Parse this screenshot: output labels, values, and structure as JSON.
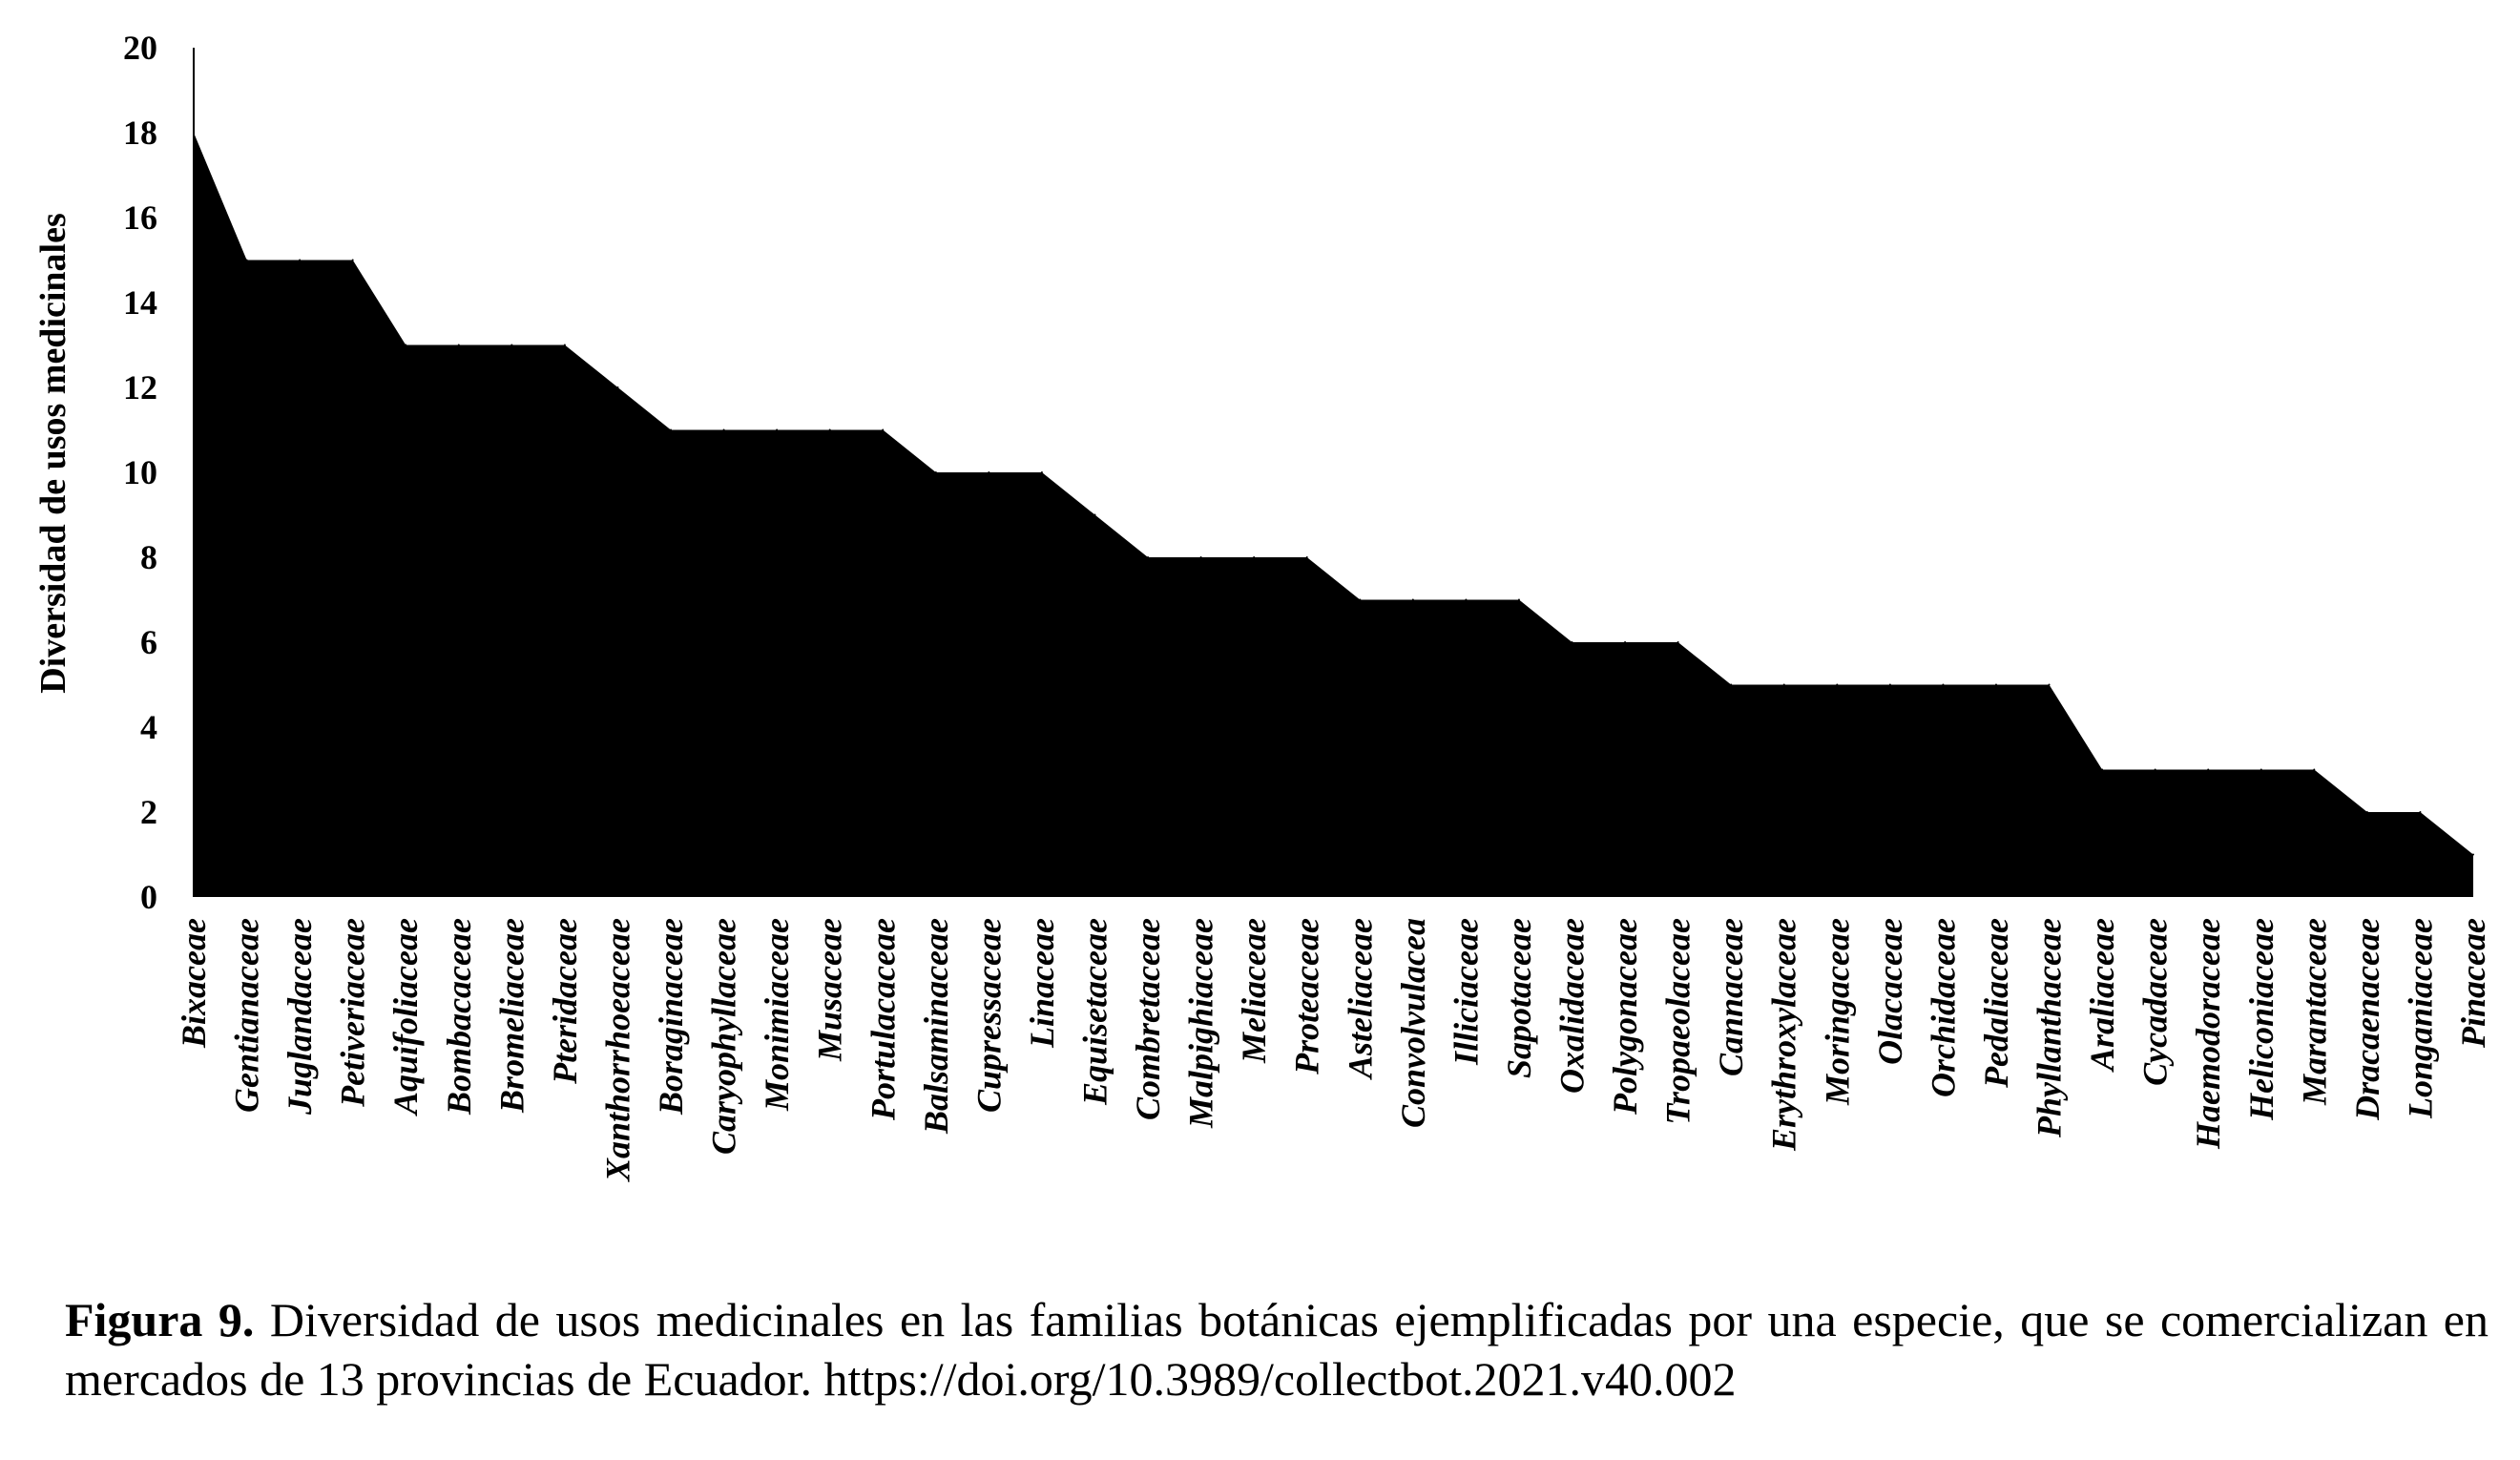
{
  "chart_data": {
    "type": "area",
    "ylabel": "Diversidad de usos medicinales",
    "xlabel": "",
    "ylim": [
      0,
      20
    ],
    "yticks": [
      "0",
      "2",
      "4",
      "6",
      "8",
      "10",
      "12",
      "14",
      "16",
      "18",
      "20"
    ],
    "categories": [
      "Bixaceae",
      "Gentianaceae",
      "Juglandaceae",
      "Petiveriaceae",
      "Aquifoliaceae",
      "Bombacaceae",
      "Bromeliaceae",
      "Pteridaceae",
      "Xanthorrhoeaceae",
      "Boraginaceae",
      "Caryophyllaceae",
      "Monimiaceae",
      "Musaceae",
      "Portulacaceae",
      "Balsaminaceae",
      "Cupressaceae",
      "Linaceae",
      "Equisetaceae",
      "Combretaceae",
      "Malpighiaceae",
      "Meliaceae",
      "Proteaceae",
      "Asteliaceae",
      "Convolvulacea",
      "Illiciaceae",
      "Sapotaceae",
      "Oxalidaceae",
      "Polygonaceae",
      "Tropaeolaceae",
      "Cannaceae",
      "Erythroxylaceae",
      "Moringaceae",
      "Olacaceae",
      "Orchidaceae",
      "Pedaliaceae",
      "Phyllanthaceae",
      "Araliaceae",
      "Cycadaceae",
      "Haemodoraceae",
      "Heliconiaceae",
      "Marantaceae",
      "Dracaenaceae",
      "Longaniaceae",
      "Pinaceae"
    ],
    "values": [
      18,
      15,
      15,
      15,
      13,
      13,
      13,
      13,
      12,
      11,
      11,
      11,
      11,
      11,
      10,
      10,
      10,
      9,
      8,
      8,
      8,
      8,
      7,
      7,
      7,
      7,
      6,
      6,
      6,
      5,
      5,
      5,
      5,
      5,
      5,
      5,
      3,
      3,
      3,
      3,
      3,
      2,
      2,
      1
    ],
    "fill_color": "#000000"
  },
  "caption": {
    "label": "Figura 9.",
    "text": " Diversidad de usos medicinales en las familias botánicas ejemplificadas por una especie, que se comercializan en mercados de 13 provincias de Ecuador. https://doi.org/10.3989/collectbot.2021.v40.002"
  }
}
